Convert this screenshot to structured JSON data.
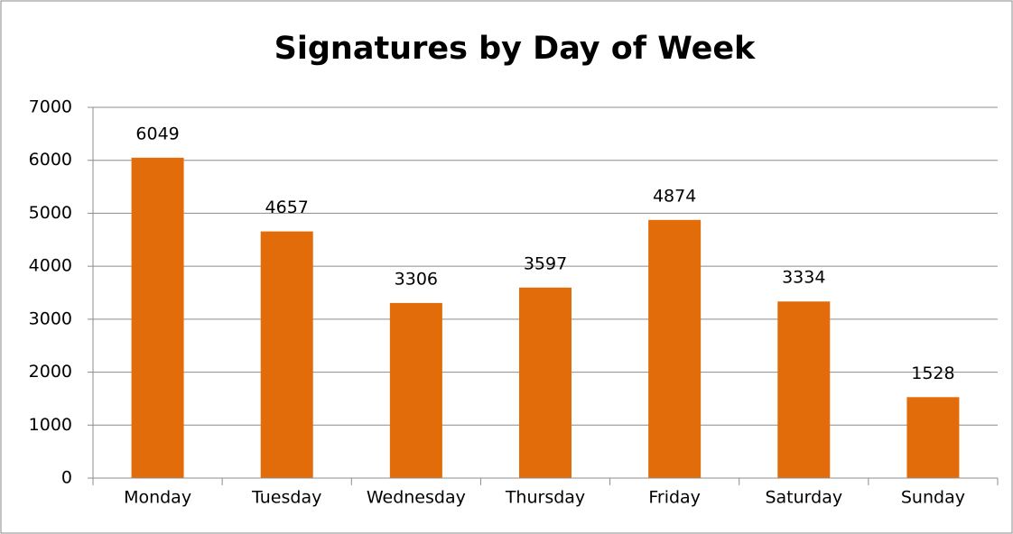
{
  "chart_data": {
    "type": "bar",
    "title": "Signatures by Day of Week",
    "categories": [
      "Monday",
      "Tuesday",
      "Wednesday",
      "Thursday",
      "Friday",
      "Saturday",
      "Sunday"
    ],
    "values": [
      6049,
      4657,
      3306,
      3597,
      4874,
      3334,
      1528
    ],
    "color": "#e36c0a",
    "ylim": [
      0,
      7000
    ],
    "yticks": [
      0,
      1000,
      2000,
      3000,
      4000,
      5000,
      6000,
      7000
    ],
    "grid": true
  }
}
